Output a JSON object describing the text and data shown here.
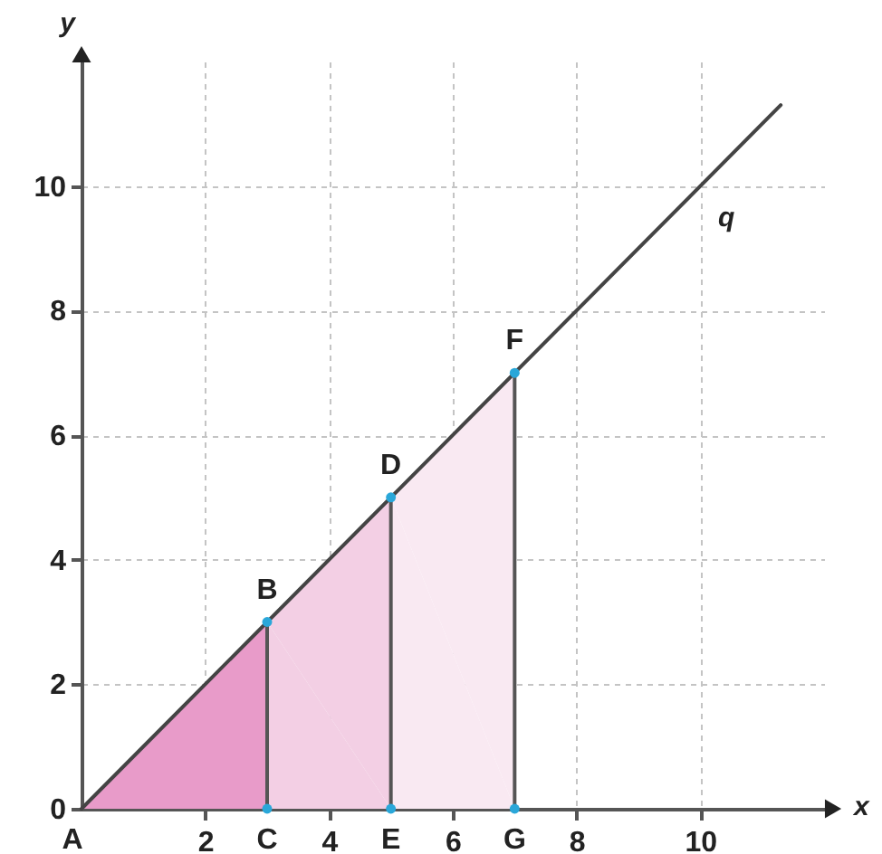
{
  "chart_data": {
    "type": "line",
    "xlabel": "x",
    "ylabel": "y",
    "xlim": [
      0,
      12
    ],
    "ylim": [
      0,
      12
    ],
    "xticks": [
      2,
      4,
      6,
      8,
      10
    ],
    "yticks": [
      0,
      2,
      4,
      6,
      8,
      10
    ],
    "grid": true,
    "series": [
      {
        "type": "area",
        "x": [
          0,
          3
        ],
        "values": [
          0,
          3
        ],
        "color": "#e89bc9"
      },
      {
        "type": "area",
        "x": [
          3,
          5
        ],
        "values": [
          3,
          5
        ],
        "color": "#f3cfe4"
      },
      {
        "type": "area",
        "x": [
          5,
          7
        ],
        "values": [
          5,
          7
        ],
        "color": "#f9e9f2"
      },
      {
        "x": [
          3,
          3
        ],
        "values": [
          0,
          3
        ],
        "color": "#555555"
      },
      {
        "x": [
          5,
          5
        ],
        "values": [
          0,
          5
        ],
        "color": "#555555"
      },
      {
        "x": [
          7,
          7
        ],
        "values": [
          0,
          7
        ],
        "color": "#555555"
      },
      {
        "name": "q",
        "x": [
          0,
          11.3
        ],
        "values": [
          0,
          11.3
        ],
        "color": "#444444"
      },
      {
        "type": "scatter",
        "marker": "circle",
        "x": [
          3,
          3,
          5,
          5,
          7,
          7
        ],
        "values": [
          3,
          0,
          5,
          0,
          7,
          0
        ],
        "color": "#2aa7d9"
      }
    ],
    "annotations": [
      {
        "text": "A",
        "x": 0,
        "y": 0
      },
      {
        "text": "B",
        "x": 3,
        "y": 3
      },
      {
        "text": "C",
        "x": 3,
        "y": 0
      },
      {
        "text": "D",
        "x": 5,
        "y": 5
      },
      {
        "text": "E",
        "x": 5,
        "y": 0
      },
      {
        "text": "F",
        "x": 7,
        "y": 7
      },
      {
        "text": "G",
        "x": 7,
        "y": 0
      }
    ]
  }
}
